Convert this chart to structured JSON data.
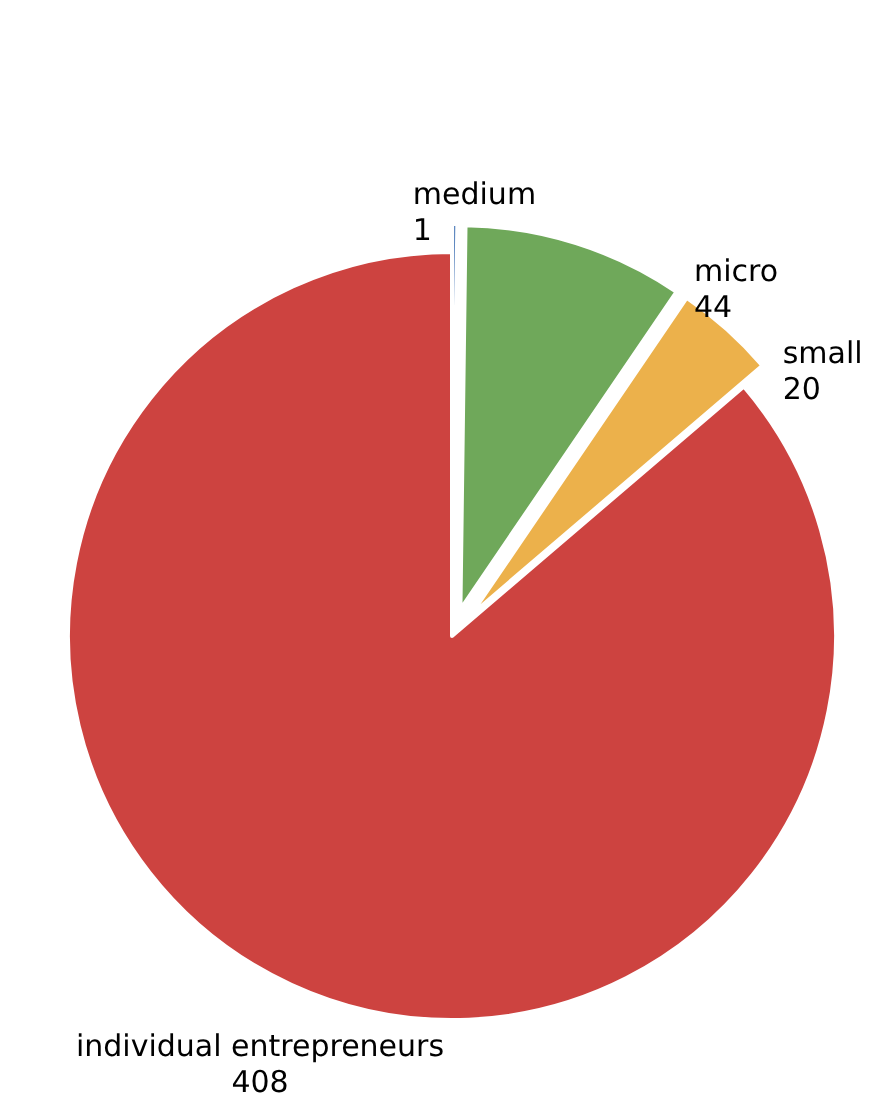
{
  "chart_data": {
    "type": "pie",
    "categories": [
      "medium",
      "micro",
      "small",
      "individual entrepreneurs"
    ],
    "values": [
      1,
      44,
      20,
      408
    ],
    "colors": [
      "#3d6fb3",
      "#6fa85a",
      "#ecb14b",
      "#cd4340"
    ],
    "data_labels": true,
    "legend": false
  }
}
